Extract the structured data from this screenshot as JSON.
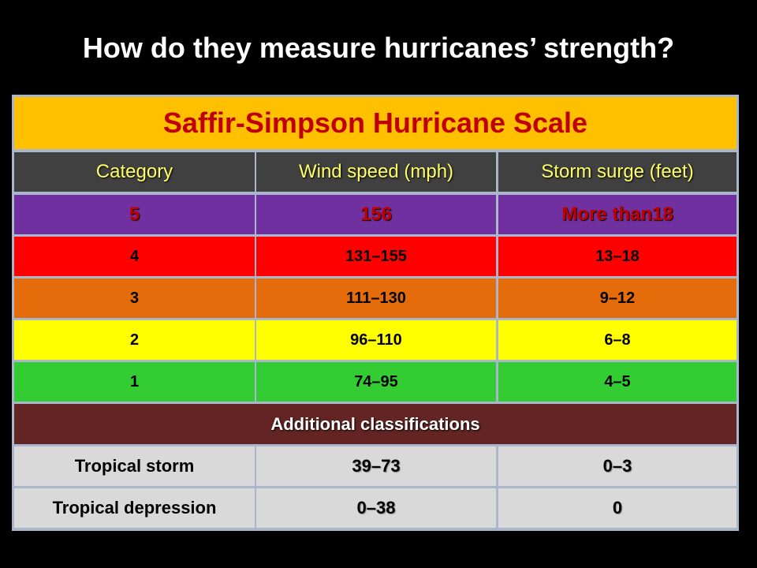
{
  "page_title": "How do they measure hurricanes’ strength?",
  "table": {
    "title": "Saffir-Simpson Hurricane Scale",
    "header": [
      "Category",
      "Wind speed (mph)",
      "Storm surge (feet)"
    ],
    "rows": [
      [
        "5",
        "156",
        "More than18"
      ],
      [
        "4",
        "131–155",
        "13–18"
      ],
      [
        "3",
        "111–130",
        "9–12"
      ],
      [
        "2",
        "96–110",
        "6–8"
      ],
      [
        "1",
        "74–95",
        "4–5"
      ]
    ],
    "section_label": "Additional classifications",
    "extra_rows": [
      [
        "Tropical storm",
        "39–73",
        "0–3"
      ],
      [
        "Tropical depression",
        "0–38",
        "0"
      ]
    ]
  }
}
